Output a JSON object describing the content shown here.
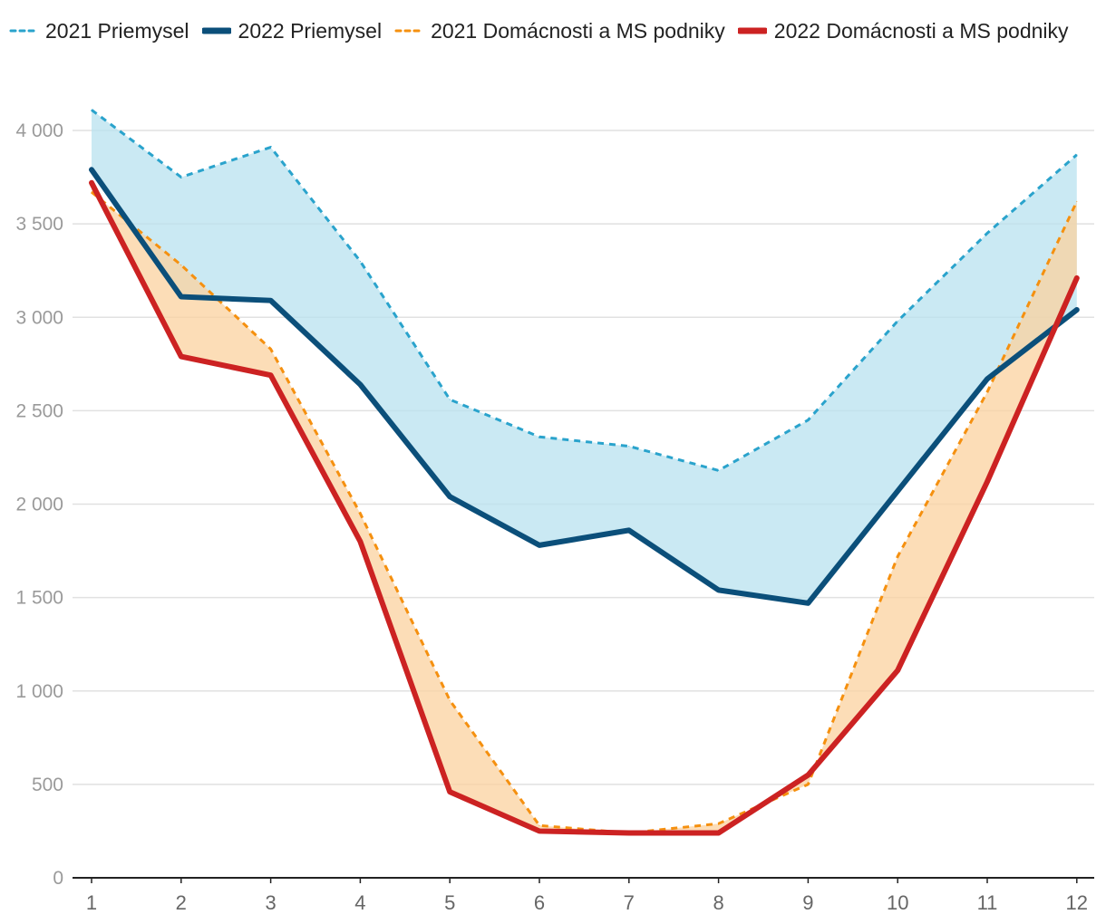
{
  "chart_data": {
    "type": "line",
    "title": "",
    "xlabel": "",
    "ylabel": "",
    "categories": [
      "1",
      "2",
      "3",
      "4",
      "5",
      "6",
      "7",
      "8",
      "9",
      "10",
      "11",
      "12"
    ],
    "ylim": [
      0,
      4000
    ],
    "yticks": [
      0,
      500,
      1000,
      1500,
      2000,
      2500,
      3000,
      3500,
      4000
    ],
    "ytick_labels": [
      "0",
      "500",
      "1 000",
      "1 500",
      "2 000",
      "2 500",
      "3 000",
      "3 500",
      "4 000"
    ],
    "grid": "horizontal",
    "legend_position": "top-left",
    "series": [
      {
        "name": "2021 Priemysel",
        "color": "#2aa3cc",
        "dashed": true,
        "values": [
          4110,
          3750,
          3910,
          3300,
          2560,
          2360,
          2310,
          2180,
          2450,
          2980,
          3450,
          3870
        ]
      },
      {
        "name": "2022 Priemysel",
        "color": "#0b4f7a",
        "dashed": false,
        "values": [
          3790,
          3110,
          3090,
          2640,
          2040,
          1780,
          1860,
          1540,
          1470,
          2070,
          2670,
          3040
        ]
      },
      {
        "name": "2021 Domácnosti a MS podniky",
        "color": "#f5900f",
        "dashed": true,
        "values": [
          3670,
          3280,
          2830,
          1950,
          950,
          280,
          240,
          290,
          500,
          1720,
          2600,
          3620
        ]
      },
      {
        "name": "2022 Domácnosti a MS podniky",
        "color": "#cc2222",
        "dashed": false,
        "values": [
          3720,
          2790,
          2690,
          1800,
          460,
          250,
          240,
          240,
          550,
          1110,
          2120,
          3210
        ]
      }
    ],
    "bands": [
      {
        "upper_series": "2021 Priemysel",
        "lower_series": "2022 Priemysel",
        "color": "#b8e2ef"
      },
      {
        "upper_series": "2021 Domácnosti a MS podniky",
        "lower_series": "2022 Domácnosti a MS podniky",
        "color": "#fbd29f"
      }
    ]
  }
}
